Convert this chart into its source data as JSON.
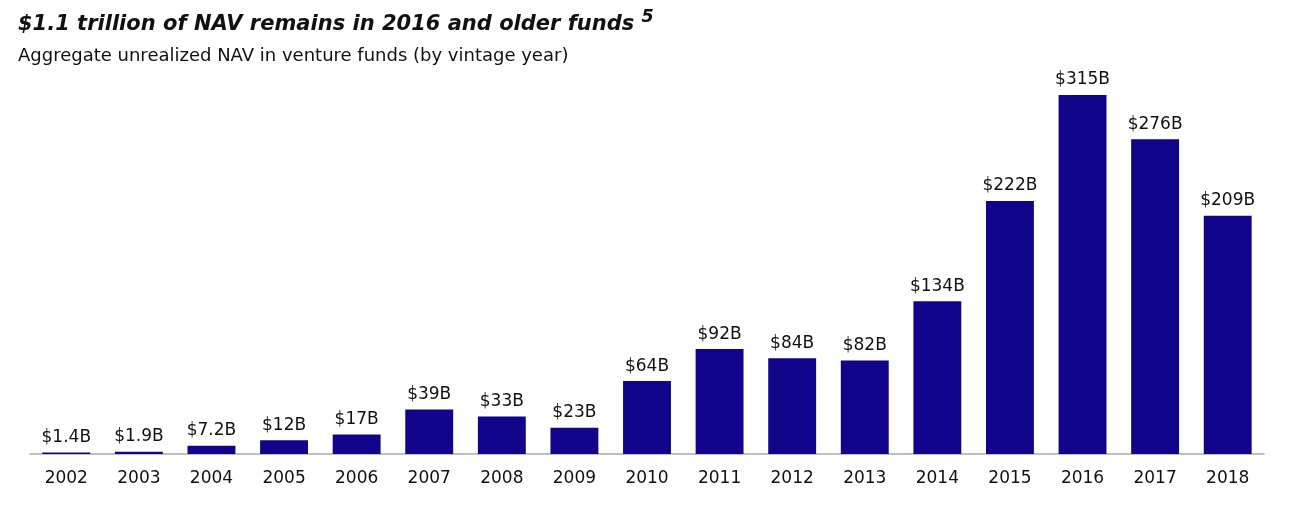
{
  "chart_data": {
    "type": "bar",
    "title": "$1.1 trillion of NAV remains in 2016 and older funds $^{5}$",
    "subtitle": "Aggregate unrealized NAV in venture funds (by vintage year)",
    "categories": [
      "2002",
      "2003",
      "2004",
      "2005",
      "2006",
      "2007",
      "2008",
      "2009",
      "2010",
      "2011",
      "2012",
      "2013",
      "2014",
      "2015",
      "2016",
      "2017",
      "2018"
    ],
    "values": [
      1.4,
      1.9,
      7.2,
      12,
      17,
      39,
      33,
      23,
      64,
      92,
      84,
      82,
      134,
      222,
      315,
      276,
      209
    ],
    "value_labels": [
      "$1.4B",
      "$1.9B",
      "$7.2B",
      "$12B",
      "$17B",
      "$39B",
      "$33B",
      "$23B",
      "$64B",
      "$92B",
      "$84B",
      "$82B",
      "$134B",
      "$222B",
      "$315B",
      "$276B",
      "$209B"
    ],
    "color": "#10058a"
  }
}
